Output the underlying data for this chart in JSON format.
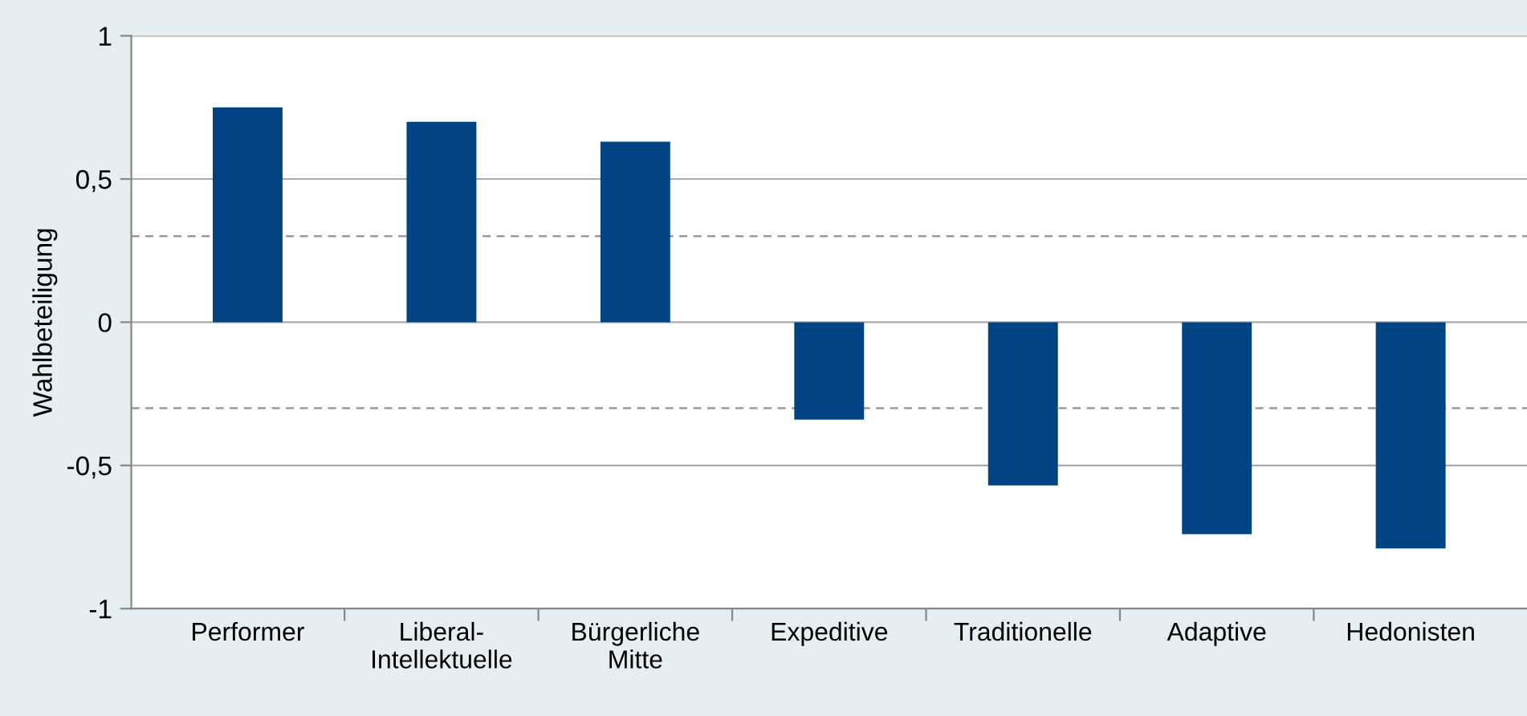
{
  "chart_data": {
    "type": "bar",
    "ylabel": "Wahlbeteiligung",
    "categories": [
      "Performer",
      "Liberal-\nIntellektuelle",
      "Bürgerliche\nMitte",
      "Expeditive",
      "Traditionelle",
      "Adaptive",
      "Hedonisten"
    ],
    "values": [
      0.75,
      0.7,
      0.63,
      -0.34,
      -0.57,
      -0.74,
      -0.79
    ],
    "color": "#004483",
    "ylim": [
      -1,
      1
    ],
    "yticks": [
      {
        "value": -1,
        "label": "-1"
      },
      {
        "value": -0.5,
        "label": "-0,5"
      },
      {
        "value": 0,
        "label": "0"
      },
      {
        "value": 0.5,
        "label": "0,5"
      },
      {
        "value": 1,
        "label": "1"
      }
    ],
    "grid": "y",
    "ref_lines": [
      {
        "axis": "y",
        "value": 0.3,
        "color": "#9a9a9a",
        "line_style": "dashed"
      },
      {
        "axis": "y",
        "value": -0.3,
        "color": "#9a9a9a",
        "line_style": "dashed"
      }
    ]
  }
}
